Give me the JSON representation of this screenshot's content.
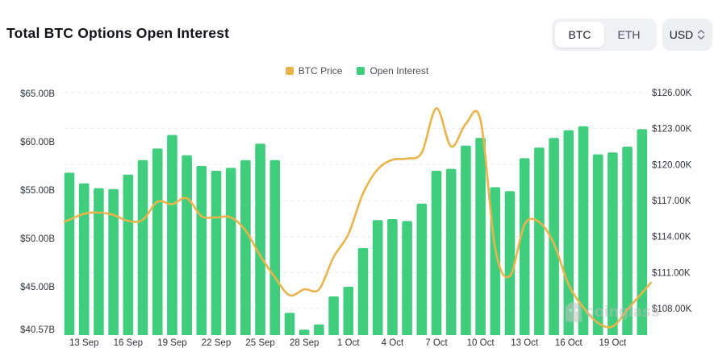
{
  "header": {
    "title": "Total BTC Options Open Interest",
    "asset_toggle": {
      "options": [
        "BTC",
        "ETH"
      ],
      "selected": "BTC"
    },
    "currency_select": {
      "value": "USD"
    }
  },
  "legend": [
    {
      "label": "BTC Price",
      "color": "#e9b44c"
    },
    {
      "label": "Open Interest",
      "color": "#41cd7e"
    }
  ],
  "watermark_text": "coinglass",
  "chart_data": {
    "type": "bar+line dual-axis daily time series",
    "x": [
      "12 Sep",
      "13 Sep",
      "14 Sep",
      "15 Sep",
      "16 Sep",
      "17 Sep",
      "18 Sep",
      "19 Sep",
      "20 Sep",
      "21 Sep",
      "22 Sep",
      "23 Sep",
      "24 Sep",
      "25 Sep",
      "26 Sep",
      "27 Sep",
      "28 Sep",
      "29 Sep",
      "30 Sep",
      "1 Oct",
      "2 Oct",
      "3 Oct",
      "4 Oct",
      "5 Oct",
      "6 Oct",
      "7 Oct",
      "8 Oct",
      "9 Oct",
      "10 Oct",
      "11 Oct",
      "12 Oct",
      "13 Oct",
      "14 Oct",
      "15 Oct",
      "16 Oct",
      "17 Oct",
      "18 Oct",
      "19 Oct",
      "20 Oct",
      "21 Oct"
    ],
    "x_tick_labels": [
      "13 Sep",
      "16 Sep",
      "19 Sep",
      "22 Sep",
      "25 Sep",
      "28 Sep",
      "1 Oct",
      "4 Oct",
      "7 Oct",
      "10 Oct",
      "13 Oct",
      "16 Oct",
      "19 Oct"
    ],
    "series": [
      {
        "name": "Open Interest",
        "type": "bar",
        "axis": "left",
        "unit": "USD billions",
        "color": "#41cd7e",
        "values": [
          56.8,
          55.7,
          55.2,
          55.1,
          56.6,
          58.1,
          59.3,
          60.7,
          58.6,
          57.5,
          57.0,
          57.3,
          58.1,
          59.8,
          58.1,
          42.3,
          40.57,
          41.1,
          44.0,
          45.0,
          49.0,
          51.9,
          52.0,
          51.8,
          53.6,
          57.0,
          57.2,
          59.6,
          60.4,
          55.3,
          54.9,
          58.3,
          59.4,
          60.4,
          61.2,
          61.6,
          58.7,
          58.9,
          59.5,
          61.3
        ]
      },
      {
        "name": "BTC Price",
        "type": "line",
        "axis": "right",
        "unit": "USD thousands",
        "color": "#e9b44c",
        "values": [
          115.4,
          115.9,
          116.0,
          115.8,
          115.3,
          115.4,
          116.9,
          116.7,
          117.2,
          115.7,
          115.6,
          115.6,
          114.5,
          112.4,
          110.6,
          109.1,
          109.6,
          109.6,
          112.3,
          114.2,
          117.6,
          119.6,
          120.4,
          120.5,
          121.0,
          124.7,
          121.5,
          123.4,
          123.7,
          113.0,
          110.7,
          115.0,
          115.2,
          113.4,
          110.0,
          108.1,
          106.8,
          106.5,
          107.9,
          109.3
        ]
      }
    ],
    "left_axis": {
      "tick_labels": [
        "$65.00B",
        "$60.00B",
        "$55.00B",
        "$50.00B",
        "$45.00B",
        "$40.57B"
      ],
      "tick_values": [
        65,
        60,
        55,
        50,
        45,
        40.57
      ],
      "min": 40.57,
      "max": 65
    },
    "right_axis": {
      "tick_labels": [
        "$126.00K",
        "$123.00K",
        "$120.00K",
        "$117.00K",
        "$114.00K",
        "$111.00K",
        "$108.00K"
      ],
      "tick_values": [
        126,
        123,
        120,
        117,
        114,
        111,
        108
      ],
      "min": 108,
      "max": 126
    },
    "grid": {
      "horizontal_dashed_lines_on_right_axis_ticks": true,
      "legend_position": "top-center"
    }
  }
}
